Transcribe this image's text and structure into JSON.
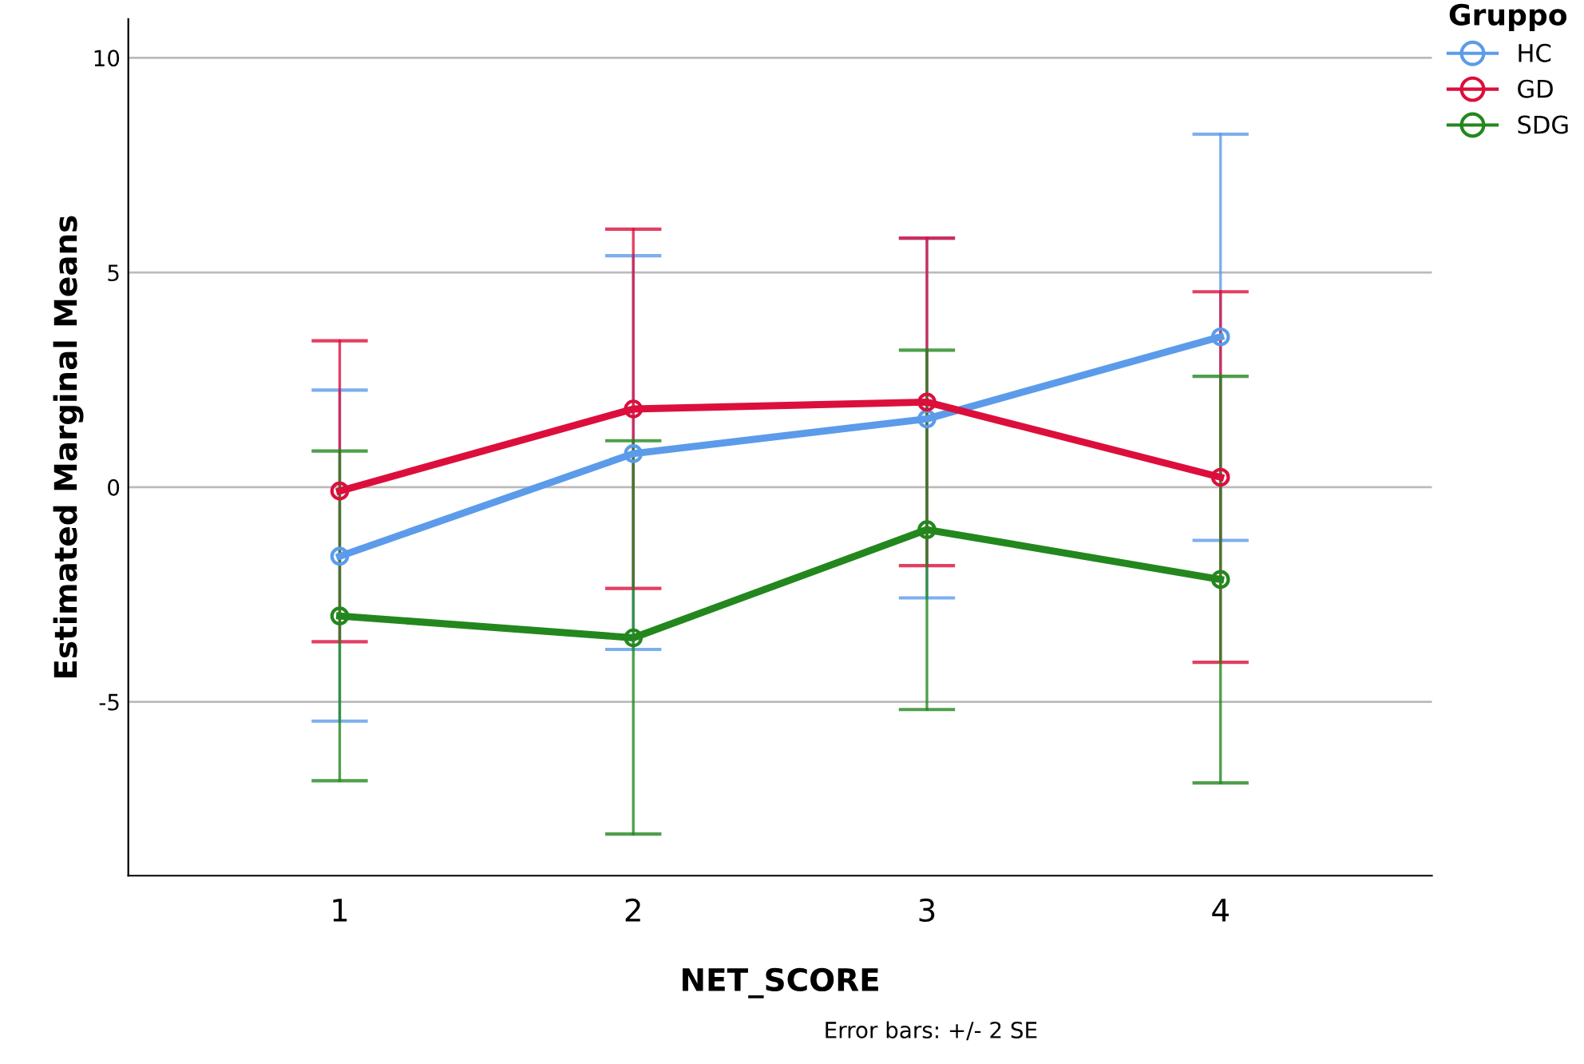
{
  "chart_data": {
    "type": "line",
    "xlabel": "NET_SCORE",
    "ylabel": "Estimated Marginal Means",
    "legend_title": "Gruppo",
    "x": [
      1,
      2,
      3,
      4
    ],
    "xlim": [
      0.28,
      4.72
    ],
    "xticks": [
      1,
      2,
      3,
      4
    ],
    "ylim": [
      -9.05,
      10.9
    ],
    "yticks": [
      -5,
      0,
      5,
      10
    ],
    "grid": "y",
    "legend": "top right",
    "marker": "circle",
    "line_style": "solid",
    "annotations": [
      "Error bars: +/- 2 SE"
    ],
    "series": [
      {
        "name": "HC",
        "color": "#5b9bea",
        "values": [
          -1.61,
          0.78,
          1.59,
          3.5
        ],
        "errors": [
          [
            -5.45,
            2.26
          ],
          [
            -3.78,
            5.39
          ],
          [
            -2.58,
            5.8
          ],
          [
            -1.24,
            8.22
          ]
        ]
      },
      {
        "name": "GD",
        "color": "#dc0f3c",
        "values": [
          -0.09,
          1.82,
          1.98,
          0.23
        ],
        "errors": [
          [
            -3.6,
            3.41
          ],
          [
            -2.36,
            6.01
          ],
          [
            -1.83,
            5.8
          ],
          [
            -4.08,
            4.55
          ]
        ]
      },
      {
        "name": "SDG",
        "color": "#23871e",
        "values": [
          -3.0,
          -3.51,
          -0.99,
          -2.15
        ],
        "errors": [
          [
            -6.84,
            0.84
          ],
          [
            -8.08,
            1.08
          ],
          [
            -5.18,
            3.19
          ],
          [
            -6.89,
            2.58
          ]
        ]
      }
    ]
  }
}
